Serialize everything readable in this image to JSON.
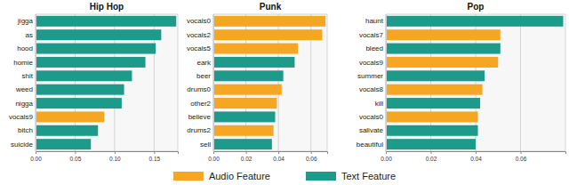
{
  "chart_data": [
    {
      "type": "bar",
      "orientation": "horizontal",
      "title": "Hip Hop",
      "legend": "bottom",
      "grid": true,
      "categories": [
        "jigga",
        "as",
        "hood",
        "homie",
        "shit",
        "weed",
        "nigga",
        "vocals9",
        "bitch",
        "suicide"
      ],
      "series": [
        {
          "name": "Audio Feature",
          "color": "#f5a623",
          "values": [
            null,
            null,
            null,
            null,
            null,
            null,
            null,
            0.087,
            null,
            null
          ]
        },
        {
          "name": "Text Feature",
          "color": "#1e9a8a",
          "values": [
            0.178,
            0.159,
            0.152,
            0.139,
            0.122,
            0.112,
            0.109,
            null,
            0.079,
            0.07
          ]
        }
      ],
      "xlim": [
        0,
        0.18
      ],
      "xticks": [
        {
          "value": 0,
          "label": "0.00"
        },
        {
          "value": 0.05,
          "label": "0.05"
        },
        {
          "value": 0.1,
          "label": "0.10"
        },
        {
          "value": 0.15,
          "label": "0.15"
        }
      ]
    },
    {
      "type": "bar",
      "orientation": "horizontal",
      "title": "Punk",
      "grid": true,
      "categories": [
        "vocals0",
        "vocals2",
        "vocals5",
        "eark",
        "beer",
        "drums0",
        "other2",
        "believe",
        "drums2",
        "sell"
      ],
      "series": [
        {
          "color": "#f5a623",
          "values": [
            0.069,
            0.067,
            0.052,
            null,
            null,
            0.042,
            0.039,
            null,
            0.037,
            null
          ]
        },
        {
          "color": "#1e9a8a",
          "values": [
            null,
            null,
            null,
            0.05,
            0.043,
            null,
            null,
            0.038,
            null,
            0.036
          ]
        }
      ],
      "xlim": [
        0,
        0.07
      ],
      "xticks": [
        {
          "value": 0,
          "label": "0.00"
        },
        {
          "value": 0.02,
          "label": "0.02"
        },
        {
          "value": 0.04,
          "label": "0.04"
        },
        {
          "value": 0.06,
          "label": "0.06"
        }
      ]
    },
    {
      "type": "bar",
      "orientation": "horizontal",
      "title": "Pop",
      "grid": true,
      "categories": [
        "haunt",
        "vocals7",
        "bleed",
        "vocals9",
        "summer",
        "vocals8",
        "kill",
        "vocals0",
        "salivate",
        "beautiful"
      ],
      "series": [
        {
          "color": "#f5a623",
          "values": [
            null,
            0.051,
            null,
            0.05,
            null,
            0.043,
            null,
            0.041,
            null,
            null
          ]
        },
        {
          "color": "#1e9a8a",
          "values": [
            0.079,
            null,
            0.051,
            null,
            0.044,
            null,
            0.042,
            null,
            0.041,
            0.04
          ]
        }
      ],
      "xlim": [
        0,
        0.08
      ],
      "xticks": [
        {
          "value": 0,
          "label": "0.00"
        },
        {
          "value": 0.02,
          "label": "0.02"
        },
        {
          "value": 0.04,
          "label": "0.04"
        },
        {
          "value": 0.06,
          "label": "0.06"
        }
      ]
    }
  ]
}
